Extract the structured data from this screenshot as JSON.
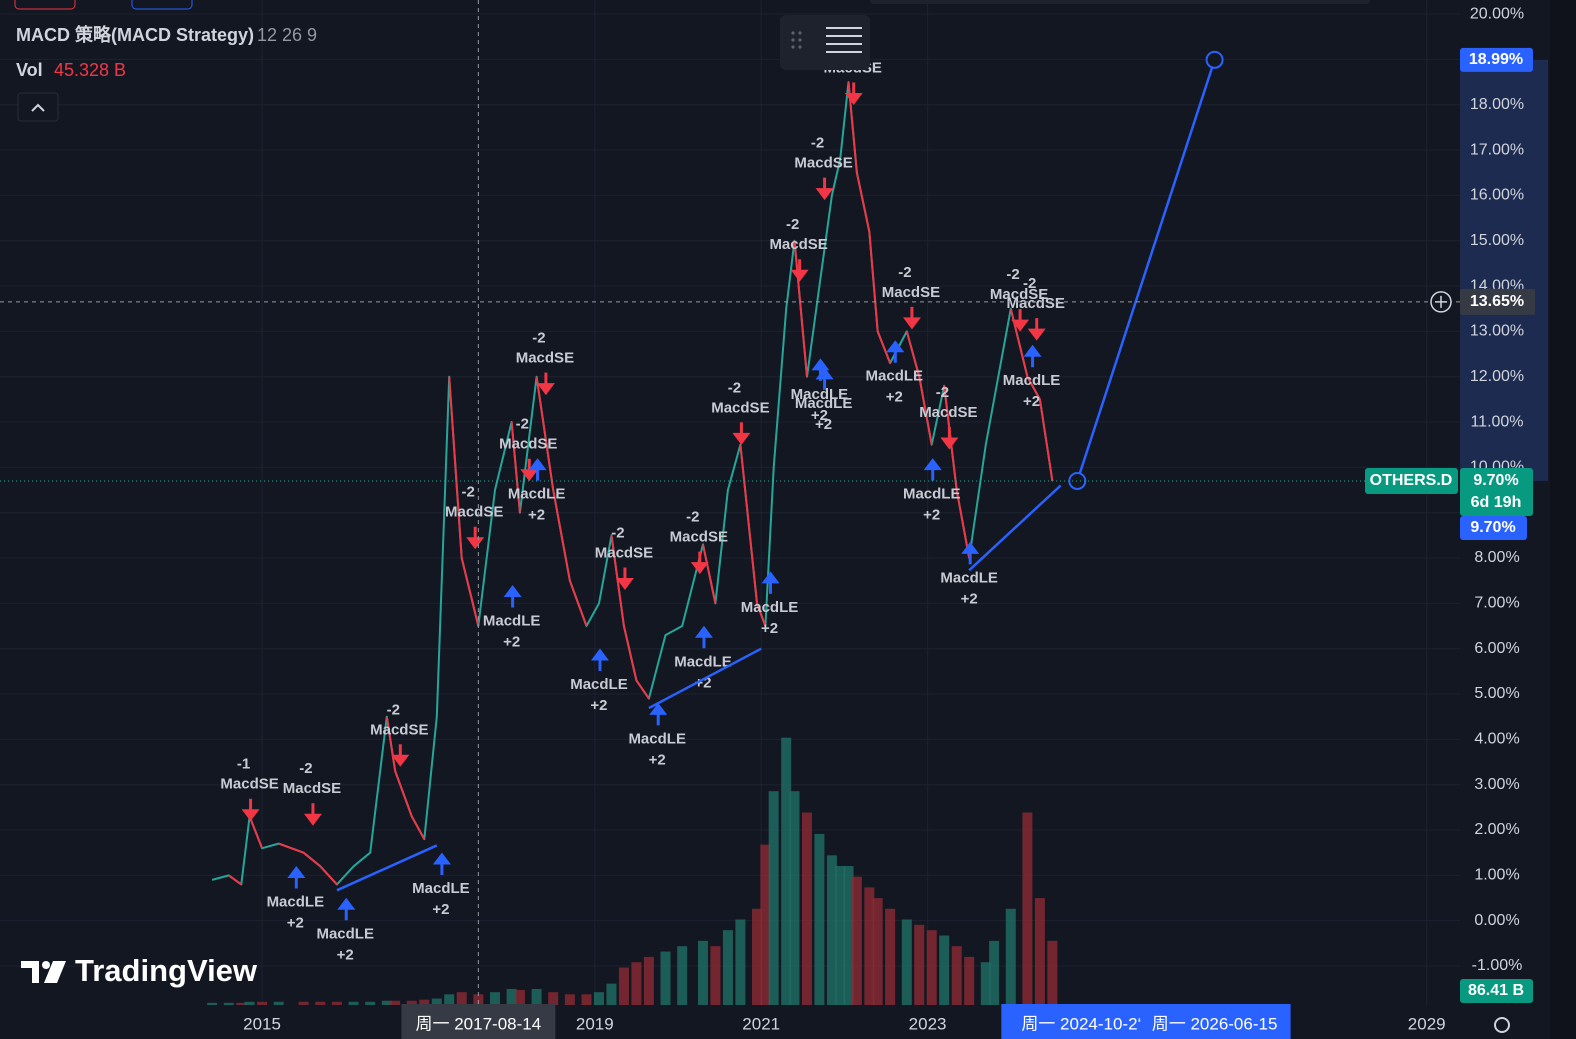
{
  "chart_data": {
    "type": "line",
    "title": "MACD 策略(MACD Strategy)",
    "subtitle": "12 26 9",
    "x": [
      2014.4,
      2014.6,
      2014.75,
      2014.85,
      2015.0,
      2015.2,
      2015.5,
      2015.7,
      2015.9,
      2016.1,
      2016.3,
      2016.5,
      2016.6,
      2016.8,
      2016.95,
      2017.1,
      2017.25,
      2017.4,
      2017.6,
      2017.8,
      2018.0,
      2018.1,
      2018.3,
      2018.5,
      2018.7,
      2018.9,
      2019.05,
      2019.2,
      2019.35,
      2019.5,
      2019.65,
      2019.85,
      2020.05,
      2020.3,
      2020.45,
      2020.6,
      2020.75,
      2020.95,
      2021.05,
      2021.15,
      2021.3,
      2021.4,
      2021.55,
      2021.7,
      2021.85,
      2021.95,
      2022.05,
      2022.15,
      2022.3,
      2022.4,
      2022.55,
      2022.75,
      2022.9,
      2023.05,
      2023.2,
      2023.35,
      2023.5,
      2023.7,
      2023.8,
      2024.0,
      2024.2,
      2024.35,
      2024.5
    ],
    "series": [
      {
        "name": "OTHERS.D",
        "color": "#26a69a",
        "down_color": "#f23645",
        "values": [
          0.9,
          1.0,
          0.8,
          2.3,
          1.6,
          1.7,
          1.5,
          1.2,
          0.8,
          1.2,
          1.5,
          4.5,
          3.3,
          2.3,
          1.8,
          4.5,
          12.0,
          8.0,
          6.5,
          9.5,
          11.0,
          9.0,
          12.0,
          9.5,
          7.5,
          6.5,
          7.0,
          8.5,
          6.5,
          5.3,
          4.9,
          6.3,
          6.5,
          8.3,
          7.0,
          9.5,
          10.5,
          7.0,
          6.5,
          10.0,
          13.5,
          15.0,
          12.0,
          14.0,
          16.0,
          16.8,
          18.5,
          16.5,
          15.2,
          13.0,
          12.3,
          13.0,
          12.0,
          10.5,
          11.8,
          9.5,
          8.0,
          10.5,
          11.5,
          13.5,
          12.0,
          11.5,
          9.7
        ]
      },
      {
        "name": "Vol",
        "axis": "y2",
        "color": "#1f6f66",
        "down_color": "#8c2a33",
        "current_label": "45.328 B",
        "last_label": "86.41 B",
        "values": [
          2,
          2,
          2,
          3,
          3,
          3,
          3,
          3,
          3,
          3,
          3,
          4,
          4,
          4,
          5,
          6,
          10,
          12,
          10,
          12,
          15,
          14,
          15,
          12,
          10,
          10,
          12,
          20,
          35,
          40,
          45,
          50,
          55,
          60,
          55,
          70,
          80,
          90,
          150,
          200,
          250,
          200,
          180,
          160,
          140,
          130,
          130,
          120,
          110,
          100,
          90,
          80,
          75,
          70,
          65,
          55,
          45,
          40,
          60,
          90,
          180,
          100,
          60
        ]
      }
    ],
    "xlim": [
      2011.85,
      2029.4
    ],
    "xticks": [
      2015,
      2019,
      2021,
      2023,
      2029
    ],
    "ylim": [
      -1.86,
      20.31
    ],
    "yticks": [
      {
        "value": -1,
        "label": "-1.00%"
      },
      {
        "value": 0,
        "label": "0.00%"
      },
      {
        "value": 1,
        "label": "1.00%"
      },
      {
        "value": 2,
        "label": "2.00%"
      },
      {
        "value": 3,
        "label": "3.00%"
      },
      {
        "value": 4,
        "label": "4.00%"
      },
      {
        "value": 5,
        "label": "5.00%"
      },
      {
        "value": 6,
        "label": "6.00%"
      },
      {
        "value": 7,
        "label": "7.00%"
      },
      {
        "value": 8,
        "label": "8.00%"
      },
      {
        "value": 9,
        "label": "9.00%"
      },
      {
        "value": 10,
        "label": "10.00%"
      },
      {
        "value": 11,
        "label": "11.00%"
      },
      {
        "value": 12,
        "label": "12.00%"
      },
      {
        "value": 13,
        "label": "13.00%"
      },
      {
        "value": 14,
        "label": "14.00%"
      },
      {
        "value": 15,
        "label": "15.00%"
      },
      {
        "value": 16,
        "label": "16.00%"
      },
      {
        "value": 17,
        "label": "17.00%"
      },
      {
        "value": 18,
        "label": "18.00%"
      },
      {
        "value": 19,
        "label": "19.00%"
      },
      {
        "value": 20,
        "label": "20.00%"
      }
    ],
    "y2lim": [
      0,
      940
    ],
    "grid": true,
    "signals": [
      {
        "x": 2014.85,
        "y": 3.0,
        "label": "MacdSE",
        "qty": "-1",
        "side": "short"
      },
      {
        "x": 2015.6,
        "y": 2.9,
        "label": "MacdSE",
        "qty": "-2",
        "side": "short"
      },
      {
        "x": 2015.4,
        "y": 0.4,
        "label": "MacdLE",
        "qty": "+2",
        "side": "long"
      },
      {
        "x": 2016.0,
        "y": -0.3,
        "label": "MacdLE",
        "qty": "+2",
        "side": "long"
      },
      {
        "x": 2016.65,
        "y": 4.2,
        "label": "MacdSE",
        "qty": "-2",
        "side": "short"
      },
      {
        "x": 2017.15,
        "y": 0.7,
        "label": "MacdLE",
        "qty": "+2",
        "side": "long"
      },
      {
        "x": 2017.55,
        "y": 9.0,
        "label": "MacdSE",
        "qty": "-2",
        "side": "short"
      },
      {
        "x": 2018.0,
        "y": 6.6,
        "label": "MacdLE",
        "qty": "+2",
        "side": "long"
      },
      {
        "x": 2018.4,
        "y": 12.4,
        "label": "MacdSE",
        "qty": "-2",
        "side": "short"
      },
      {
        "x": 2018.2,
        "y": 10.5,
        "label": "MacdSE",
        "qty": "-2",
        "side": "short"
      },
      {
        "x": 2018.3,
        "y": 9.4,
        "label": "MacdLE",
        "qty": "+2",
        "side": "long"
      },
      {
        "x": 2019.35,
        "y": 8.1,
        "label": "MacdSE",
        "qty": "-2",
        "side": "short"
      },
      {
        "x": 2019.05,
        "y": 5.2,
        "label": "MacdLE",
        "qty": "+2",
        "side": "long"
      },
      {
        "x": 2019.75,
        "y": 4.0,
        "label": "MacdLE",
        "qty": "+2",
        "side": "long"
      },
      {
        "x": 2020.25,
        "y": 8.45,
        "label": "MacdSE",
        "qty": "-2",
        "side": "short"
      },
      {
        "x": 2020.3,
        "y": 5.7,
        "label": "MacdLE",
        "qty": "+2",
        "side": "long"
      },
      {
        "x": 2020.75,
        "y": 11.3,
        "label": "MacdSE",
        "qty": "-2",
        "side": "short"
      },
      {
        "x": 2021.1,
        "y": 6.9,
        "label": "MacdLE",
        "qty": "+2",
        "side": "long"
      },
      {
        "x": 2021.45,
        "y": 14.9,
        "label": "MacdSE",
        "qty": "-2",
        "side": "short"
      },
      {
        "x": 2021.75,
        "y": 16.7,
        "label": "MacdSE",
        "qty": "-2",
        "side": "short"
      },
      {
        "x": 2022.1,
        "y": 18.8,
        "label": "MacdSE",
        "side": "short"
      },
      {
        "x": 2021.7,
        "y": 11.6,
        "label": "MacdLE",
        "qty": "+2",
        "side": "long"
      },
      {
        "x": 2021.75,
        "y": 11.4,
        "label": "MacdLE",
        "qty": "+2",
        "side": "long"
      },
      {
        "x": 2022.8,
        "y": 13.85,
        "label": "MacdSE",
        "qty": "-2",
        "side": "short"
      },
      {
        "x": 2022.6,
        "y": 12.0,
        "label": "MacdLE",
        "qty": "+2",
        "side": "long"
      },
      {
        "x": 2023.25,
        "y": 11.2,
        "label": "MacdSE",
        "qty": "-2",
        "side": "short"
      },
      {
        "x": 2023.05,
        "y": 9.4,
        "label": "MacdLE",
        "qty": "+2",
        "side": "long"
      },
      {
        "x": 2023.5,
        "y": 7.55,
        "label": "MacdLE",
        "qty": "+2",
        "side": "long"
      },
      {
        "x": 2024.1,
        "y": 13.8,
        "label": "MacdSE",
        "qty": "-2",
        "side": "short"
      },
      {
        "x": 2024.3,
        "y": 13.6,
        "label": "MacdSE",
        "qty": "-2",
        "side": "short"
      },
      {
        "x": 2024.25,
        "y": 11.9,
        "label": "MacdLE",
        "qty": "+2",
        "side": "long"
      }
    ],
    "short_color": "#f23645",
    "long_color": "#2962ff",
    "drawings": [
      {
        "x": [
          2015.9,
          2017.1
        ],
        "y": [
          0.67,
          1.66
        ]
      },
      {
        "x": [
          2019.65,
          2021.0
        ],
        "y": [
          4.69,
          6.0
        ]
      },
      {
        "x": [
          2023.5,
          2024.6
        ],
        "y": [
          7.73,
          9.6
        ]
      },
      {
        "x": [
          2024.8,
          2026.45
        ],
        "y": [
          9.7,
          18.99
        ],
        "x_labels": [
          "周一 2024-10-2‘",
          "周一 2026-06-15"
        ],
        "y_labels": [
          "9.70%",
          "18.99%"
        ]
      }
    ],
    "crosshair": {
      "x": 2017.6,
      "y": 13.65,
      "x_label": "周一 2017-08-14",
      "y_label": "13.65%"
    },
    "last_price": {
      "label": "9.70%",
      "countdown": "6d 19h"
    },
    "logo": "TradingView"
  }
}
